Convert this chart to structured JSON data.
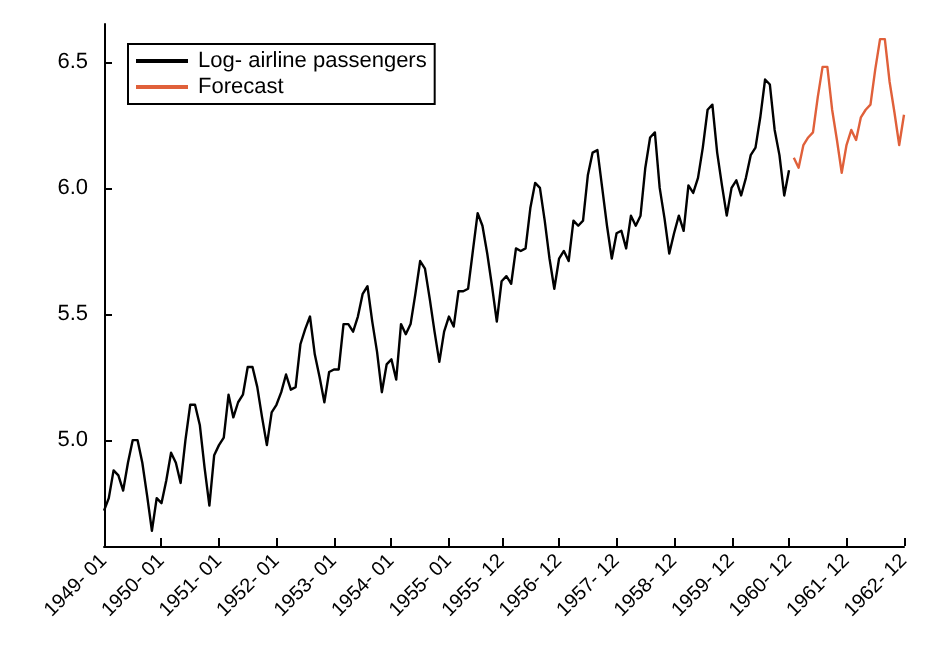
{
  "chart_data": {
    "type": "line",
    "categories": [
      "1949- 01",
      null,
      null,
      null,
      null,
      null,
      null,
      null,
      null,
      null,
      null,
      null,
      "1950- 01",
      null,
      null,
      null,
      null,
      null,
      null,
      null,
      null,
      null,
      null,
      null,
      "1951- 01",
      null,
      null,
      null,
      null,
      null,
      null,
      null,
      null,
      null,
      null,
      null,
      "1952- 01",
      null,
      null,
      null,
      null,
      null,
      null,
      null,
      null,
      null,
      null,
      null,
      "1953- 01",
      null,
      null,
      null,
      null,
      null,
      null,
      null,
      null,
      null,
      null,
      null,
      "1954- 01",
      null,
      null,
      null,
      null,
      null,
      null,
      null,
      null,
      null,
      null,
      null,
      "1955- 01",
      null,
      null,
      null,
      null,
      null,
      null,
      null,
      null,
      null,
      null,
      "1955- 12",
      null,
      null,
      null,
      null,
      null,
      null,
      null,
      null,
      null,
      null,
      null,
      "1956- 12",
      null,
      null,
      null,
      null,
      null,
      null,
      null,
      null,
      null,
      null,
      null,
      "1957- 12",
      null,
      null,
      null,
      null,
      null,
      null,
      null,
      null,
      null,
      null,
      null,
      "1958- 12",
      null,
      null,
      null,
      null,
      null,
      null,
      null,
      null,
      null,
      null,
      null,
      "1959- 12",
      null,
      null,
      null,
      null,
      null,
      null,
      null,
      null,
      null,
      null,
      null,
      "1960- 12",
      null,
      null,
      null,
      null,
      null,
      null,
      null,
      null,
      null,
      null,
      null,
      "1961- 12",
      null,
      null,
      null,
      null,
      null,
      null,
      null,
      null,
      null,
      null,
      null,
      "1962- 12"
    ],
    "series": [
      {
        "name": "Log- airline passengers",
        "color": "#000000",
        "values": [
          4.72,
          4.77,
          4.88,
          4.86,
          4.8,
          4.91,
          5.0,
          5.0,
          4.91,
          4.78,
          4.64,
          4.77,
          4.75,
          4.84,
          4.95,
          4.91,
          4.83,
          5.0,
          5.14,
          5.14,
          5.06,
          4.89,
          4.74,
          4.94,
          4.98,
          5.01,
          5.18,
          5.09,
          5.15,
          5.18,
          5.29,
          5.29,
          5.21,
          5.09,
          4.98,
          5.11,
          5.14,
          5.19,
          5.26,
          5.2,
          5.21,
          5.38,
          5.44,
          5.49,
          5.34,
          5.25,
          5.15,
          5.27,
          5.28,
          5.28,
          5.46,
          5.46,
          5.43,
          5.49,
          5.58,
          5.61,
          5.47,
          5.35,
          5.19,
          5.3,
          5.32,
          5.24,
          5.46,
          5.42,
          5.46,
          5.58,
          5.71,
          5.68,
          5.56,
          5.43,
          5.31,
          5.43,
          5.49,
          5.45,
          5.59,
          5.59,
          5.6,
          5.75,
          5.9,
          5.85,
          5.74,
          5.61,
          5.47,
          5.63,
          5.65,
          5.62,
          5.76,
          5.75,
          5.76,
          5.92,
          6.02,
          6.0,
          5.87,
          5.72,
          5.6,
          5.72,
          5.75,
          5.71,
          5.87,
          5.85,
          5.87,
          6.05,
          6.14,
          6.15,
          6.0,
          5.85,
          5.72,
          5.82,
          5.83,
          5.76,
          5.89,
          5.85,
          5.89,
          6.08,
          6.2,
          6.22,
          6.0,
          5.88,
          5.74,
          5.82,
          5.89,
          5.83,
          6.01,
          5.98,
          6.04,
          6.16,
          6.31,
          6.33,
          6.14,
          6.01,
          5.89,
          6.0,
          6.03,
          5.97,
          6.04,
          6.13,
          6.16,
          6.28,
          6.43,
          6.41,
          6.23,
          6.13,
          5.97,
          6.07,
          null,
          null,
          null,
          null,
          null,
          null,
          null,
          null,
          null,
          null,
          null,
          null,
          null,
          null,
          null,
          null,
          null,
          null,
          null,
          null,
          null,
          null,
          null,
          null
        ]
      },
      {
        "name": "Forecast",
        "color": "#e0603a",
        "values": [
          null,
          null,
          null,
          null,
          null,
          null,
          null,
          null,
          null,
          null,
          null,
          null,
          null,
          null,
          null,
          null,
          null,
          null,
          null,
          null,
          null,
          null,
          null,
          null,
          null,
          null,
          null,
          null,
          null,
          null,
          null,
          null,
          null,
          null,
          null,
          null,
          null,
          null,
          null,
          null,
          null,
          null,
          null,
          null,
          null,
          null,
          null,
          null,
          null,
          null,
          null,
          null,
          null,
          null,
          null,
          null,
          null,
          null,
          null,
          null,
          null,
          null,
          null,
          null,
          null,
          null,
          null,
          null,
          null,
          null,
          null,
          null,
          null,
          null,
          null,
          null,
          null,
          null,
          null,
          null,
          null,
          null,
          null,
          null,
          null,
          null,
          null,
          null,
          null,
          null,
          null,
          null,
          null,
          null,
          null,
          null,
          null,
          null,
          null,
          null,
          null,
          null,
          null,
          null,
          null,
          null,
          null,
          null,
          null,
          null,
          null,
          null,
          null,
          null,
          null,
          null,
          null,
          null,
          null,
          null,
          null,
          null,
          null,
          null,
          null,
          null,
          null,
          null,
          null,
          null,
          null,
          null,
          null,
          null,
          null,
          null,
          null,
          null,
          null,
          null,
          null,
          null,
          null,
          null,
          6.12,
          6.08,
          6.17,
          6.2,
          6.22,
          6.36,
          6.48,
          6.48,
          6.31,
          6.19,
          6.06,
          6.17,
          6.23,
          6.19,
          6.28,
          6.31,
          6.33,
          6.47,
          6.59,
          6.59,
          6.42,
          6.3,
          6.17,
          6.29
        ]
      }
    ],
    "ylim": [
      4.58,
      6.65
    ],
    "yticks": [
      {
        "value": 5,
        "label": "5.0"
      },
      5.5,
      {
        "value": 6,
        "label": "6.0"
      },
      6.5
    ],
    "grid": false,
    "legend": "top left",
    "marker": "none",
    "line_style": "solid"
  }
}
